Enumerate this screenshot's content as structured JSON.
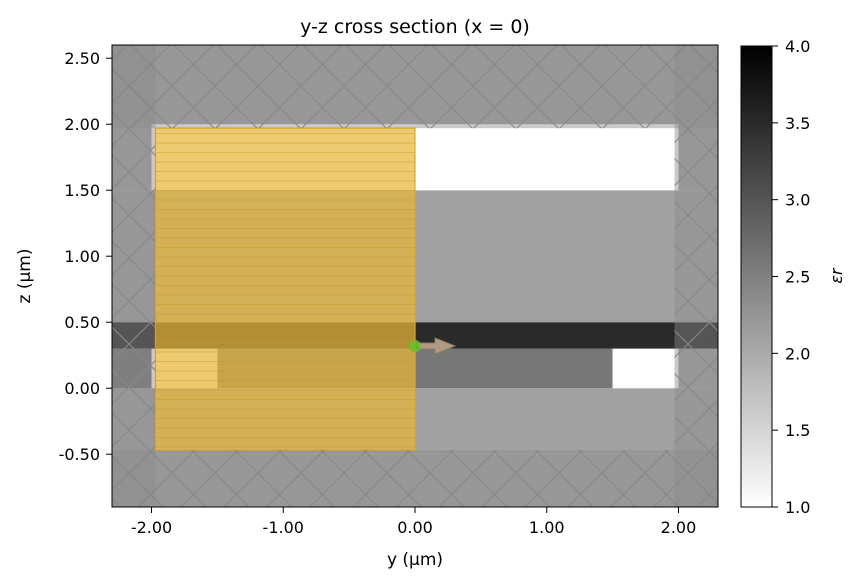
{
  "chart_data": {
    "type": "heatmap",
    "title": "y-z cross section (x = 0)",
    "xlabel": "y (µm)",
    "ylabel": "z (µm)",
    "xlim": [
      -2.3,
      2.3
    ],
    "ylim": [
      -0.9,
      2.6
    ],
    "xticks": [
      -2.0,
      -1.0,
      0.0,
      1.0,
      2.0
    ],
    "xtick_labels": [
      "-2.00",
      "-1.00",
      "0.00",
      "1.00",
      "2.00"
    ],
    "yticks": [
      -0.5,
      0.0,
      0.5,
      1.0,
      1.5,
      2.0,
      2.5
    ],
    "ytick_labels": [
      "-0.50",
      "0.00",
      "0.50",
      "1.00",
      "1.50",
      "2.00",
      "2.50"
    ],
    "colorbar": {
      "label": "εr",
      "range": [
        1.0,
        4.0
      ],
      "ticks": [
        1.0,
        1.5,
        2.0,
        2.5,
        3.0,
        3.5,
        4.0
      ],
      "tick_labels": [
        "1.0",
        "1.5",
        "2.0",
        "2.5",
        "3.0",
        "3.5",
        "4.0"
      ]
    },
    "permittivity_regions": [
      {
        "y": [
          -2.3,
          2.3
        ],
        "z": [
          -0.9,
          -0.5
        ],
        "eps": 2.1
      },
      {
        "y": [
          -2.3,
          2.3
        ],
        "z": [
          -0.5,
          0.0
        ],
        "eps": 2.1
      },
      {
        "y": [
          -2.3,
          1.5
        ],
        "z": [
          0.0,
          0.3
        ],
        "eps": 2.6
      },
      {
        "y": [
          -2.0,
          -1.5
        ],
        "z": [
          0.0,
          0.3
        ],
        "eps": 1.0
      },
      {
        "y": [
          1.5,
          2.0
        ],
        "z": [
          0.0,
          0.3
        ],
        "eps": 1.0
      },
      {
        "y": [
          2.0,
          2.3
        ],
        "z": [
          0.0,
          0.3
        ],
        "eps": 2.1
      },
      {
        "y": [
          -2.3,
          2.3
        ],
        "z": [
          0.3,
          0.5
        ],
        "eps": 3.5
      },
      {
        "y": [
          -2.3,
          2.3
        ],
        "z": [
          0.5,
          1.5
        ],
        "eps": 2.1
      },
      {
        "y": [
          -2.0,
          2.0
        ],
        "z": [
          1.5,
          2.0
        ],
        "eps": 1.0
      },
      {
        "y": [
          -2.3,
          -2.0
        ],
        "z": [
          1.5,
          2.0
        ],
        "eps": 2.1
      },
      {
        "y": [
          2.0,
          2.3
        ],
        "z": [
          1.5,
          2.0
        ],
        "eps": 2.1
      },
      {
        "y": [
          -2.3,
          2.3
        ],
        "z": [
          2.0,
          2.6
        ],
        "eps": 2.1
      }
    ],
    "pml_regions": [
      {
        "y": [
          -2.3,
          -1.97
        ],
        "z": [
          -0.9,
          2.6
        ]
      },
      {
        "y": [
          1.97,
          2.3
        ],
        "z": [
          -0.9,
          2.6
        ]
      },
      {
        "y": [
          -2.3,
          2.3
        ],
        "z": [
          -0.9,
          -0.47
        ]
      },
      {
        "y": [
          -2.3,
          2.3
        ],
        "z": [
          1.97,
          2.6
        ]
      }
    ],
    "monitor_region": {
      "y": [
        -1.97,
        0.0
      ],
      "z": [
        -0.47,
        1.97
      ],
      "color": "#e8b63a"
    },
    "source": {
      "y": 0.0,
      "z": 0.32,
      "direction": "+y",
      "color": "#6bbf2a",
      "arrow_color": "#b09a82"
    }
  }
}
